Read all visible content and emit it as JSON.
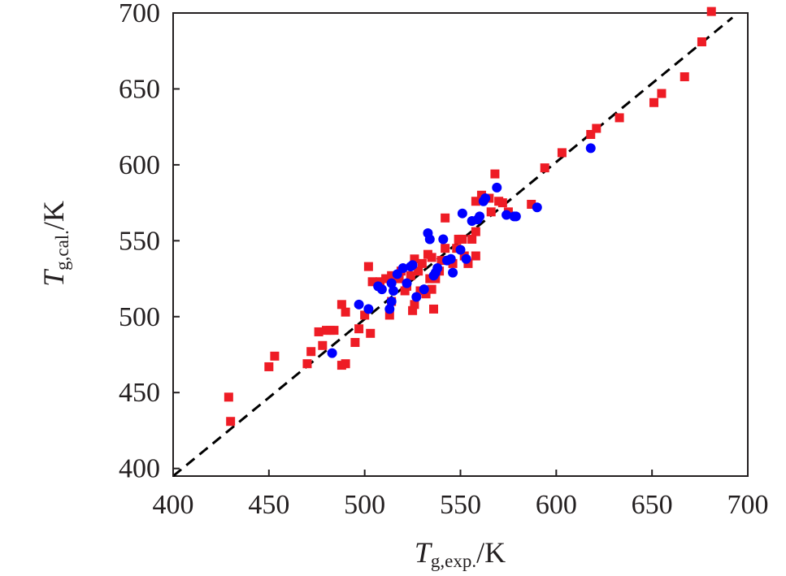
{
  "chart_data": {
    "type": "scatter",
    "x_axis": {
      "label_main": "T",
      "label_sub": "g,exp.",
      "label_unit": "/K",
      "min": 400,
      "max": 700,
      "ticks": [
        400,
        450,
        500,
        550,
        600,
        650,
        700
      ],
      "tick_labels": [
        "400",
        "450",
        "500",
        "550",
        "600",
        "650",
        "700"
      ]
    },
    "y_axis": {
      "label_main": "T",
      "label_sub": "g,cal.",
      "label_unit": "/K",
      "min": 395,
      "max": 700,
      "ticks": [
        400,
        450,
        500,
        550,
        600,
        650,
        700
      ],
      "tick_labels": [
        "400",
        "450",
        "500",
        "550",
        "600",
        "650",
        "700"
      ]
    },
    "grid": false,
    "legend": "none",
    "reference_line": {
      "style": "dashed",
      "color": "#000000",
      "from": [
        400,
        395
      ],
      "to": [
        692,
        697
      ]
    },
    "series": [
      {
        "marker": "square",
        "color": "#ee1c25",
        "points": [
          [
            429,
            447
          ],
          [
            430,
            431
          ],
          [
            450,
            467
          ],
          [
            453,
            474
          ],
          [
            470,
            469
          ],
          [
            472,
            477
          ],
          [
            476,
            490
          ],
          [
            478,
            481
          ],
          [
            480,
            491
          ],
          [
            482,
            491
          ],
          [
            484,
            491
          ],
          [
            488,
            508
          ],
          [
            488,
            468
          ],
          [
            490,
            469
          ],
          [
            490,
            503
          ],
          [
            495,
            483
          ],
          [
            497,
            492
          ],
          [
            500,
            501
          ],
          [
            502,
            533
          ],
          [
            503,
            489
          ],
          [
            504,
            523
          ],
          [
            508,
            520
          ],
          [
            508,
            523
          ],
          [
            511,
            525
          ],
          [
            513,
            501
          ],
          [
            514,
            510
          ],
          [
            514,
            527
          ],
          [
            518,
            525
          ],
          [
            519,
            530
          ],
          [
            521,
            517
          ],
          [
            522,
            520
          ],
          [
            524,
            527
          ],
          [
            525,
            504
          ],
          [
            526,
            508
          ],
          [
            526,
            538
          ],
          [
            528,
            530
          ],
          [
            529,
            517
          ],
          [
            530,
            535
          ],
          [
            532,
            515
          ],
          [
            533,
            541
          ],
          [
            534,
            525
          ],
          [
            535,
            539
          ],
          [
            535,
            518
          ],
          [
            536,
            505
          ],
          [
            537,
            525
          ],
          [
            539,
            530
          ],
          [
            540,
            537
          ],
          [
            542,
            565
          ],
          [
            542,
            545
          ],
          [
            546,
            535
          ],
          [
            548,
            545
          ],
          [
            549,
            551
          ],
          [
            551,
            551
          ],
          [
            552,
            540
          ],
          [
            554,
            535
          ],
          [
            556,
            551
          ],
          [
            558,
            556
          ],
          [
            558,
            540
          ],
          [
            558,
            576
          ],
          [
            561,
            580
          ],
          [
            565,
            578
          ],
          [
            566,
            569
          ],
          [
            568,
            594
          ],
          [
            570,
            576
          ],
          [
            572,
            575
          ],
          [
            575,
            569
          ],
          [
            587,
            574
          ],
          [
            594,
            598
          ],
          [
            603,
            608
          ],
          [
            618,
            620
          ],
          [
            621,
            624
          ],
          [
            633,
            631
          ],
          [
            651,
            641
          ],
          [
            655,
            647
          ],
          [
            667,
            658
          ],
          [
            676,
            681
          ],
          [
            681,
            701
          ]
        ]
      },
      {
        "marker": "circle",
        "color": "#0000ff",
        "points": [
          [
            483,
            476
          ],
          [
            497,
            508
          ],
          [
            502,
            505
          ],
          [
            507,
            520
          ],
          [
            509,
            518
          ],
          [
            513,
            505
          ],
          [
            514,
            510
          ],
          [
            514,
            522
          ],
          [
            515,
            517
          ],
          [
            517,
            528
          ],
          [
            520,
            532
          ],
          [
            522,
            522
          ],
          [
            524,
            533
          ],
          [
            525,
            534
          ],
          [
            527,
            513
          ],
          [
            531,
            518
          ],
          [
            533,
            555
          ],
          [
            534,
            551
          ],
          [
            536,
            527
          ],
          [
            537,
            529
          ],
          [
            538,
            532
          ],
          [
            541,
            551
          ],
          [
            543,
            537
          ],
          [
            545,
            538
          ],
          [
            546,
            529
          ],
          [
            550,
            544
          ],
          [
            551,
            568
          ],
          [
            553,
            538
          ],
          [
            556,
            563
          ],
          [
            559,
            564
          ],
          [
            560,
            566
          ],
          [
            562,
            576
          ],
          [
            563,
            578
          ],
          [
            569,
            585
          ],
          [
            574,
            567
          ],
          [
            578,
            566
          ],
          [
            579,
            566
          ],
          [
            590,
            572
          ],
          [
            618,
            611
          ]
        ]
      }
    ]
  }
}
